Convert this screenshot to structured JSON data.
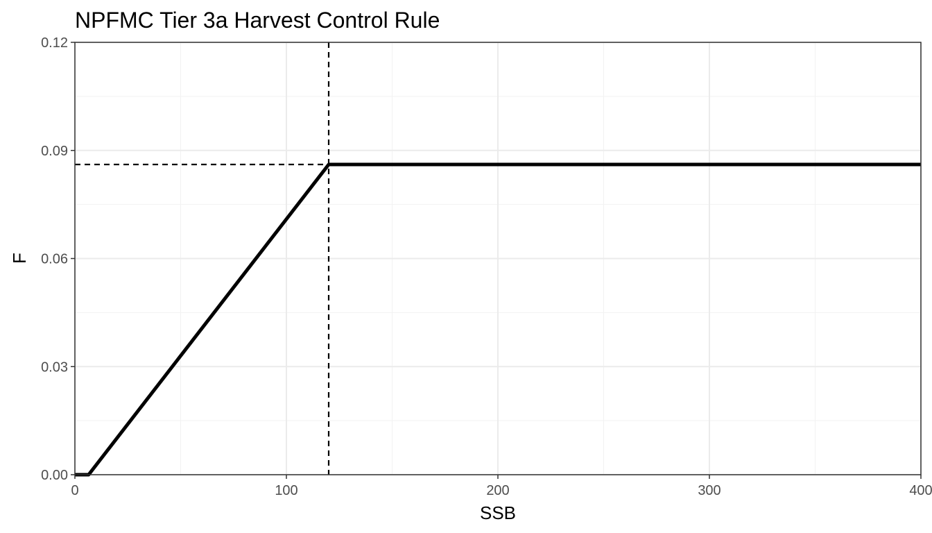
{
  "chart_data": {
    "type": "line",
    "title": "NPFMC Tier 3a Harvest Control Rule",
    "xlabel": "SSB",
    "ylabel": "F",
    "xlim": [
      0,
      400
    ],
    "ylim": [
      0,
      0.12
    ],
    "x_ticks": [
      "0",
      "100",
      "200",
      "300",
      "400"
    ],
    "y_ticks": [
      "0.00",
      "0.03",
      "0.06",
      "0.09",
      "0.12"
    ],
    "grid": true,
    "series": [
      {
        "x": [
          0,
          6.5,
          120,
          400
        ],
        "y": [
          0,
          0,
          0.0861,
          0.0861
        ],
        "color": "#000000",
        "style": "solid"
      }
    ],
    "reference_lines": [
      {
        "orientation": "vertical",
        "x": 120,
        "style": "dashed",
        "color": "#000000"
      },
      {
        "orientation": "horizontal",
        "y": 0.0861,
        "style": "dashed",
        "color": "#000000"
      }
    ]
  }
}
